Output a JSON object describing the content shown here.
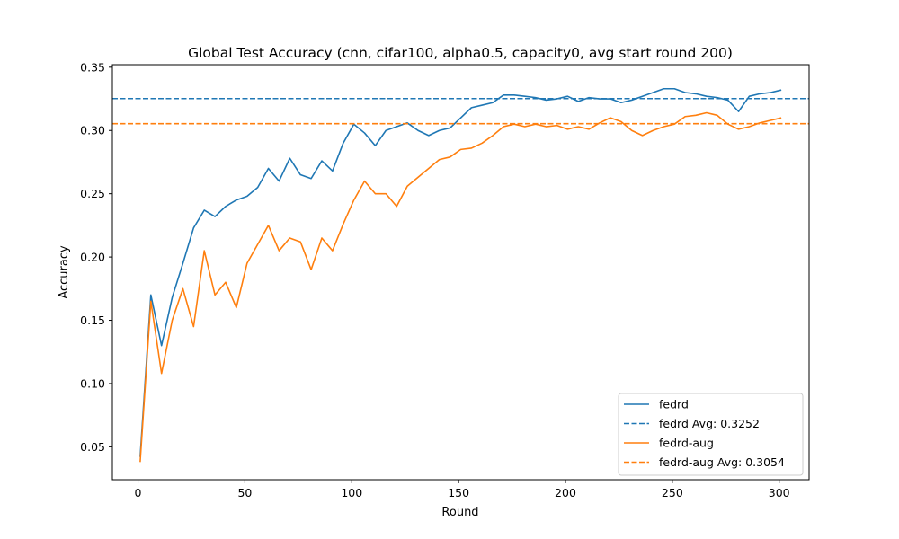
{
  "chart_data": {
    "type": "line",
    "title": "Global Test Accuracy (cnn, cifar100, alpha0.5, capacity0, avg start round 200)",
    "xlabel": "Round",
    "ylabel": "Accuracy",
    "xlim": [
      -12,
      314
    ],
    "ylim": [
      0.024,
      0.352
    ],
    "xticks": [
      0,
      50,
      100,
      150,
      200,
      250,
      300
    ],
    "yticks": [
      0.05,
      0.1,
      0.15,
      0.2,
      0.25,
      0.3,
      0.35
    ],
    "ytick_labels": [
      "0.05",
      "0.10",
      "0.15",
      "0.20",
      "0.25",
      "0.30",
      "0.35"
    ],
    "grid": false,
    "legend_position": "bottom-right",
    "series": [
      {
        "name": "fedrd",
        "color": "#1f77b4",
        "style": "solid",
        "x_start": 1,
        "x_step": 5,
        "values": [
          0.042,
          0.17,
          0.13,
          0.168,
          0.195,
          0.223,
          0.237,
          0.232,
          0.24,
          0.245,
          0.248,
          0.255,
          0.27,
          0.26,
          0.278,
          0.265,
          0.262,
          0.276,
          0.268,
          0.29,
          0.305,
          0.298,
          0.288,
          0.3,
          0.303,
          0.306,
          0.3,
          0.296,
          0.3,
          0.302,
          0.31,
          0.318,
          0.32,
          0.322,
          0.328,
          0.328,
          0.327,
          0.326,
          0.324,
          0.325,
          0.327,
          0.323,
          0.326,
          0.325,
          0.325,
          0.322,
          0.324,
          0.327,
          0.33,
          0.333,
          0.333,
          0.33,
          0.329,
          0.327,
          0.326,
          0.324,
          0.315,
          0.327,
          0.329,
          0.33,
          0.332
        ]
      },
      {
        "name": "fedrd Avg: 0.3252",
        "color": "#1f77b4",
        "style": "dashed",
        "constant": 0.3252
      },
      {
        "name": "fedrd-aug",
        "color": "#ff7f0e",
        "style": "solid",
        "x_start": 1,
        "x_step": 5,
        "values": [
          0.038,
          0.165,
          0.108,
          0.15,
          0.175,
          0.145,
          0.205,
          0.17,
          0.18,
          0.16,
          0.195,
          0.21,
          0.225,
          0.205,
          0.215,
          0.212,
          0.19,
          0.215,
          0.205,
          0.226,
          0.245,
          0.26,
          0.25,
          0.25,
          0.24,
          0.256,
          0.263,
          0.27,
          0.277,
          0.279,
          0.285,
          0.286,
          0.29,
          0.296,
          0.303,
          0.305,
          0.303,
          0.305,
          0.303,
          0.304,
          0.301,
          0.303,
          0.301,
          0.306,
          0.31,
          0.307,
          0.3,
          0.296,
          0.3,
          0.303,
          0.305,
          0.311,
          0.312,
          0.314,
          0.312,
          0.305,
          0.301,
          0.303,
          0.306,
          0.308,
          0.31
        ]
      },
      {
        "name": "fedrd-aug Avg: 0.3054",
        "color": "#ff7f0e",
        "style": "dashed",
        "constant": 0.3054
      }
    ]
  }
}
